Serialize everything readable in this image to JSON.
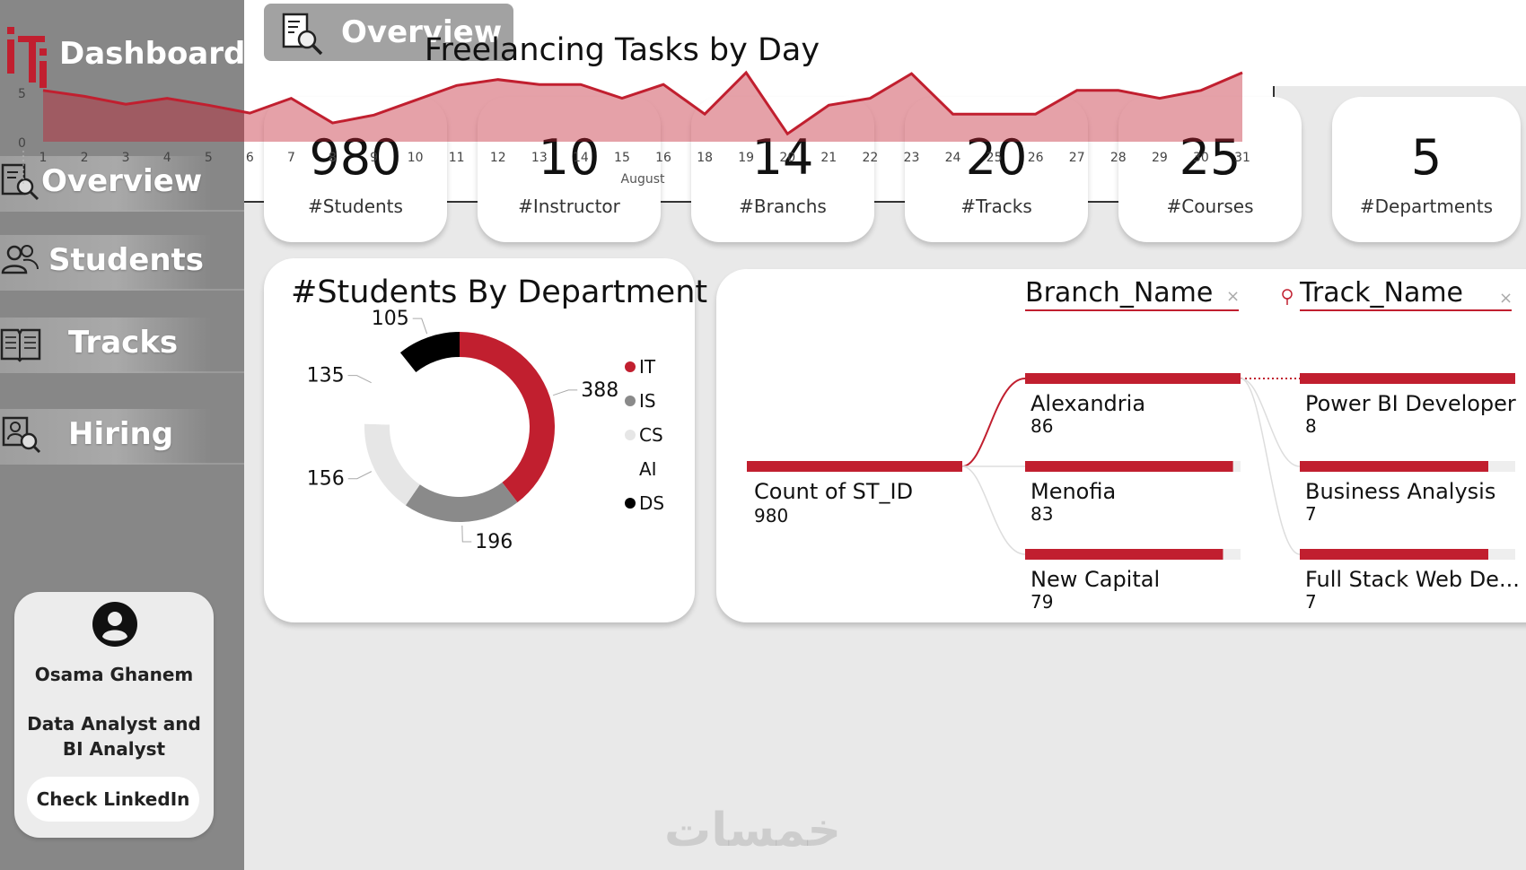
{
  "app": {
    "title": "Dashboard"
  },
  "sidebar": {
    "items": [
      {
        "label": "Overview",
        "icon": "report-search-icon"
      },
      {
        "label": "Students",
        "icon": "users-icon"
      },
      {
        "label": "Tracks",
        "icon": "book-icon"
      },
      {
        "label": "Hiring",
        "icon": "hiring-icon"
      }
    ],
    "profile": {
      "name": "Osama Ghanem",
      "role": "Data Analyst and BI Analyst",
      "button_label": "Check LinkedIn"
    }
  },
  "header": {
    "page_title": "Overview"
  },
  "kpis": [
    {
      "value": "980",
      "label": "#Students"
    },
    {
      "value": "10",
      "label": "#Instructor"
    },
    {
      "value": "14",
      "label": "#Branchs"
    },
    {
      "value": "20",
      "label": "#Tracks"
    },
    {
      "value": "25",
      "label": "#Courses"
    },
    {
      "value": "5",
      "label": "#Departments"
    }
  ],
  "donut": {
    "title": "#Students By Department",
    "legend": [
      "IT",
      "IS",
      "CS",
      "AI",
      "DS"
    ],
    "values": [
      388,
      196,
      156,
      135,
      105
    ],
    "colors": [
      "#c11f2f",
      "#8a8a8a",
      "#e6e6e6",
      "#ffffff",
      "#000000"
    ]
  },
  "tree": {
    "col1_header": "Branch_Name",
    "col2_header": "Track_Name",
    "root": {
      "label": "Count of ST_ID",
      "value": "980"
    },
    "branches": [
      {
        "label": "Alexandria",
        "value": "86"
      },
      {
        "label": "Menofia",
        "value": "83"
      },
      {
        "label": "New Capital",
        "value": "79"
      }
    ],
    "tracks": [
      {
        "label": "Power BI Developer",
        "value": "8"
      },
      {
        "label": "Business Analysis",
        "value": "7"
      },
      {
        "label": "Full Stack Web De...",
        "value": "7"
      }
    ],
    "accent": "#c11f2f"
  },
  "chart_data": {
    "type": "area",
    "title": "Freelancing Tasks by Day",
    "xlabel": "August",
    "ylabel": "",
    "x": [
      "1",
      "2",
      "3",
      "4",
      "5",
      "6",
      "7",
      "8",
      "9",
      "10",
      "11",
      "12",
      "13",
      "14",
      "15",
      "16",
      "18",
      "19",
      "20",
      "21",
      "22",
      "23",
      "24",
      "25",
      "26",
      "27",
      "28",
      "29",
      "30",
      "31"
    ],
    "values": [
      5.2,
      4.6,
      3.8,
      4.4,
      3.7,
      2.9,
      4.4,
      1.9,
      2.7,
      4.2,
      5.7,
      6.3,
      5.8,
      5.8,
      4.4,
      5.8,
      2.8,
      7.0,
      0.8,
      3.7,
      4.4,
      6.9,
      2.8,
      2.8,
      2.8,
      5.2,
      5.2,
      4.4,
      5.2,
      7.0
    ],
    "yticks": [
      "0",
      "5"
    ],
    "ylim": [
      0,
      8
    ],
    "color": "#c11f2f"
  },
  "watermark": "خمسات"
}
